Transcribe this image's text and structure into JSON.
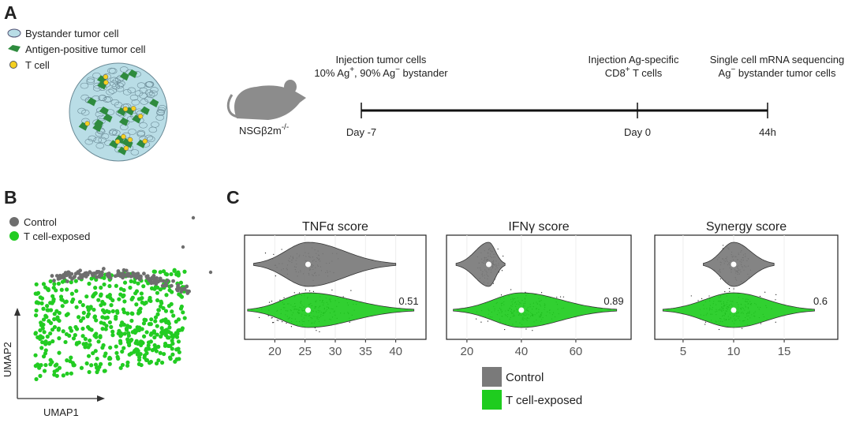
{
  "figure": {
    "panel_a": {
      "label": "A",
      "legend": [
        "Bystander tumor cell",
        "Antigen-positive tumor cell",
        "T cell"
      ],
      "mouse": {
        "text": "NSGβ2m",
        "sup": "-/-"
      },
      "timeline": [
        {
          "lines": [
            [
              "Injection tumor cells"
            ],
            [
              "10% Ag",
              "+",
              ", 90% Ag",
              "−",
              " bystander"
            ]
          ],
          "day": "Day -7"
        },
        {
          "lines": [
            [
              "Injection Ag-specific"
            ],
            [
              "CD8",
              "+",
              " T cells"
            ]
          ],
          "day": "Day 0"
        },
        {
          "lines": [
            [
              "Single cell mRNA sequencing"
            ],
            [
              "Ag",
              "−",
              " bystander tumor cells"
            ]
          ],
          "day": "44h"
        }
      ]
    },
    "panel_b": {
      "label": "B",
      "legend": [
        {
          "name": "Control",
          "color": "#6e6e6e"
        },
        {
          "name": "T cell-exposed",
          "color": "#22cc22"
        }
      ],
      "x_label": "UMAP1",
      "y_label": "UMAP2"
    },
    "panel_c": {
      "label": "C",
      "plots": [
        {
          "title": "TNFα score",
          "xlim": [
            15,
            45
          ],
          "xticks": [
            20,
            25,
            30,
            35,
            40
          ],
          "annotation": 0.51,
          "groups": [
            {
              "median": 25.5,
              "range": [
                16.5,
                40
              ]
            },
            {
              "median": 25.5,
              "range": [
                15.5,
                43
              ]
            }
          ]
        },
        {
          "title": "IFNγ score",
          "xlim": [
            12.5,
            80.3
          ],
          "xticks": [
            20,
            40,
            60
          ],
          "annotation": 0.89,
          "groups": [
            {
              "median": 28,
              "range": [
                16,
                34
              ]
            },
            {
              "median": 40,
              "range": [
                15,
                75
              ]
            }
          ]
        },
        {
          "title": "Synergy score",
          "xlim": [
            2.2,
            20.3
          ],
          "xticks": [
            5,
            10,
            15
          ],
          "annotation": 0.6,
          "groups": [
            {
              "median": 10,
              "range": [
                7,
                14
              ]
            },
            {
              "median": 10,
              "range": [
                3,
                18
              ]
            }
          ]
        }
      ],
      "legend": [
        {
          "name": "Control",
          "color": "#7a7a7a"
        },
        {
          "name": "T cell-exposed",
          "color": "#1fcc1f"
        }
      ]
    }
  }
}
